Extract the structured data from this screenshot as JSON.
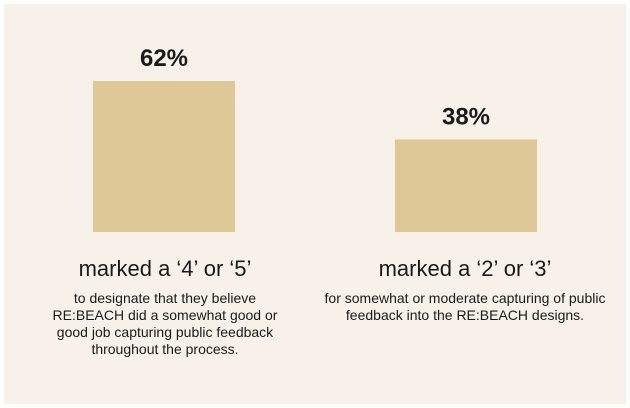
{
  "chart_data": {
    "type": "bar",
    "categories": [
      "marked a ‘4’ or ‘5’",
      "marked a ‘2’ or ‘3’"
    ],
    "values": [
      62,
      38
    ],
    "value_labels": [
      "62%",
      "38%"
    ],
    "descriptions": [
      "to designate that they believe RE:BEACH did a somewhat good or good job capturing public feedback throughout the process.",
      "for somewhat or moderate capturing of public feedback into the RE:BEACH designs."
    ],
    "ylim": [
      0,
      62
    ],
    "grid": false,
    "bar_color": "#dfc898",
    "background_color": "#f7f1ea",
    "text_color": "#1a1a1a"
  }
}
